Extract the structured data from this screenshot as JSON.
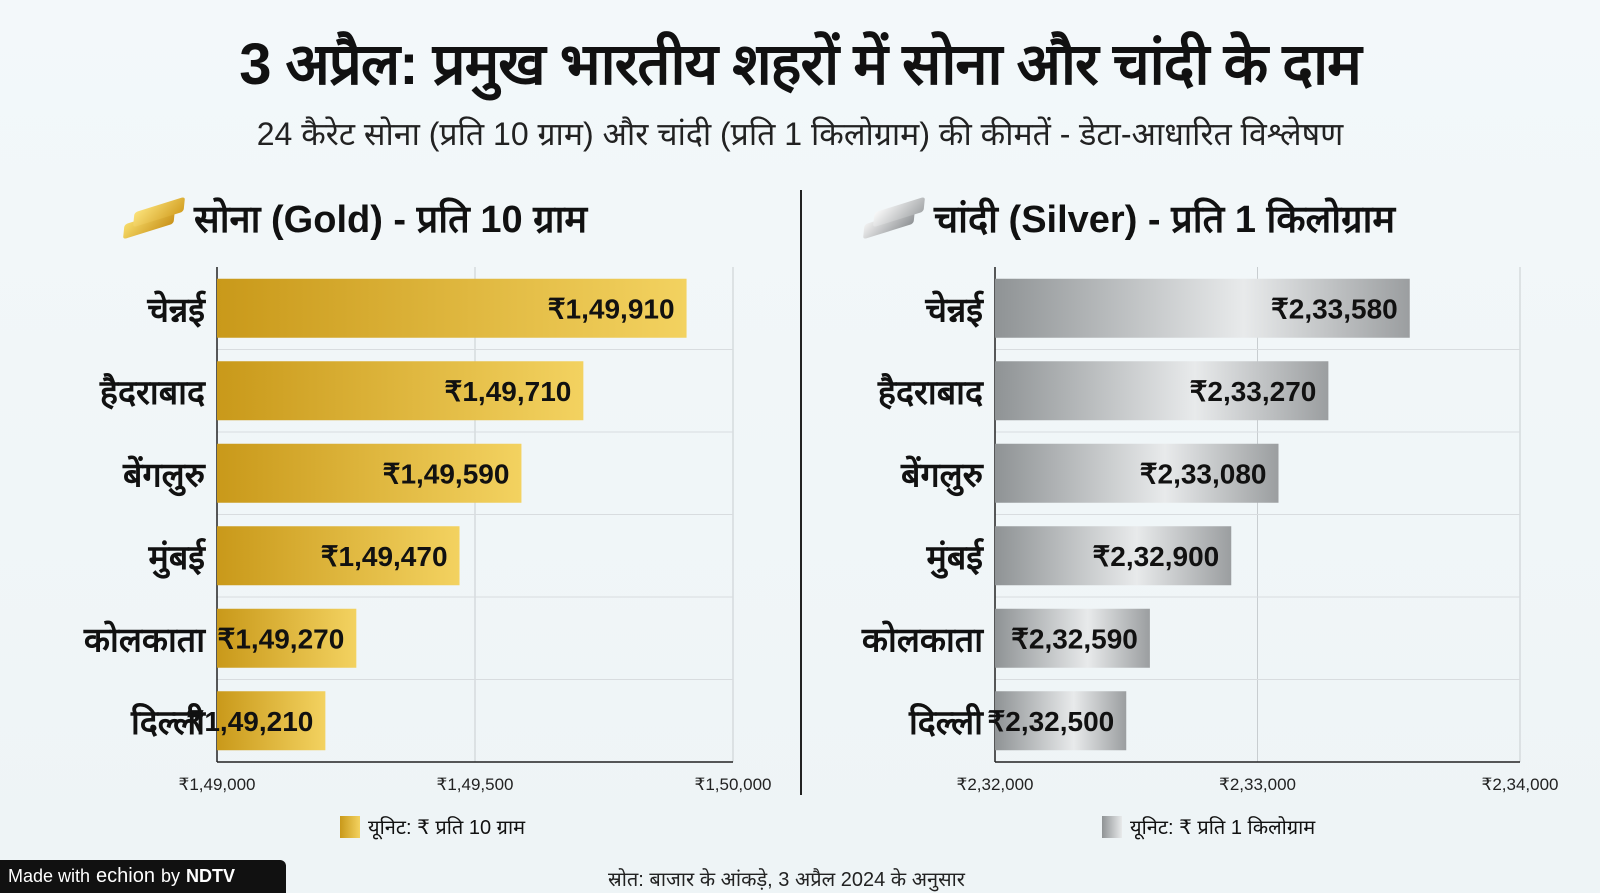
{
  "title": "3 अप्रैल: प्रमुख भारतीय शहरों में सोना और चांदी के दाम",
  "subtitle": "24 कैरेट सोना (प्रति 10 ग्राम) और चांदी (प्रति 1 किलोग्राम) की कीमतें - डेटा-आधारित विश्लेषण",
  "source": "स्रोत: बाजार के आंकड़े, 3 अप्रैल 2024 के अनुसार",
  "branding": {
    "made_with": "Made with",
    "brand": "echion",
    "by": "by",
    "org": "NDTV"
  },
  "chart_data": [
    {
      "type": "bar",
      "orientation": "horizontal",
      "title": "सोना (Gold) - प्रति 10 ग्राम",
      "icon": "gold-bar-icon",
      "categories": [
        "चेन्नई",
        "हैदराबाद",
        "बेंगलुरु",
        "मुंबई",
        "कोलकाता",
        "दिल्ली"
      ],
      "values": [
        149910,
        149710,
        149590,
        149470,
        149270,
        149210
      ],
      "data_labels": [
        "₹1,49,910",
        "₹1,49,710",
        "₹1,49,590",
        "₹1,49,470",
        "₹1,49,270",
        "₹1,49,210"
      ],
      "xlim": [
        149000,
        150000
      ],
      "ticks": [
        149000,
        149500,
        150000
      ],
      "tick_labels": [
        "₹1,49,000",
        "₹1,49,500",
        "₹1,50,000"
      ],
      "legend": "यूनिट: ₹ प्रति 10 ग्राम",
      "grid": true,
      "colors": {
        "start": "#c9991a",
        "end": "#f3d260"
      }
    },
    {
      "type": "bar",
      "orientation": "horizontal",
      "title": "चांदी (Silver) - प्रति 1 किलोग्राम",
      "icon": "silver-bar-icon",
      "categories": [
        "चेन्नई",
        "हैदराबाद",
        "बेंगलुरु",
        "मुंबई",
        "कोलकाता",
        "दिल्ली"
      ],
      "values": [
        233580,
        233270,
        233080,
        232900,
        232590,
        232500
      ],
      "data_labels": [
        "₹2,33,580",
        "₹2,33,270",
        "₹2,33,080",
        "₹2,32,900",
        "₹2,32,590",
        "₹2,32,500"
      ],
      "xlim": [
        232000,
        234000
      ],
      "ticks": [
        232000,
        233000,
        234000
      ],
      "tick_labels": [
        "₹2,32,000",
        "₹2,33,000",
        "₹2,34,000"
      ],
      "legend": "यूनिट: ₹ प्रति 1 किलोग्राम",
      "grid": true,
      "colors": {
        "start": "#8f9395",
        "end": "#e8eaeb"
      }
    }
  ]
}
